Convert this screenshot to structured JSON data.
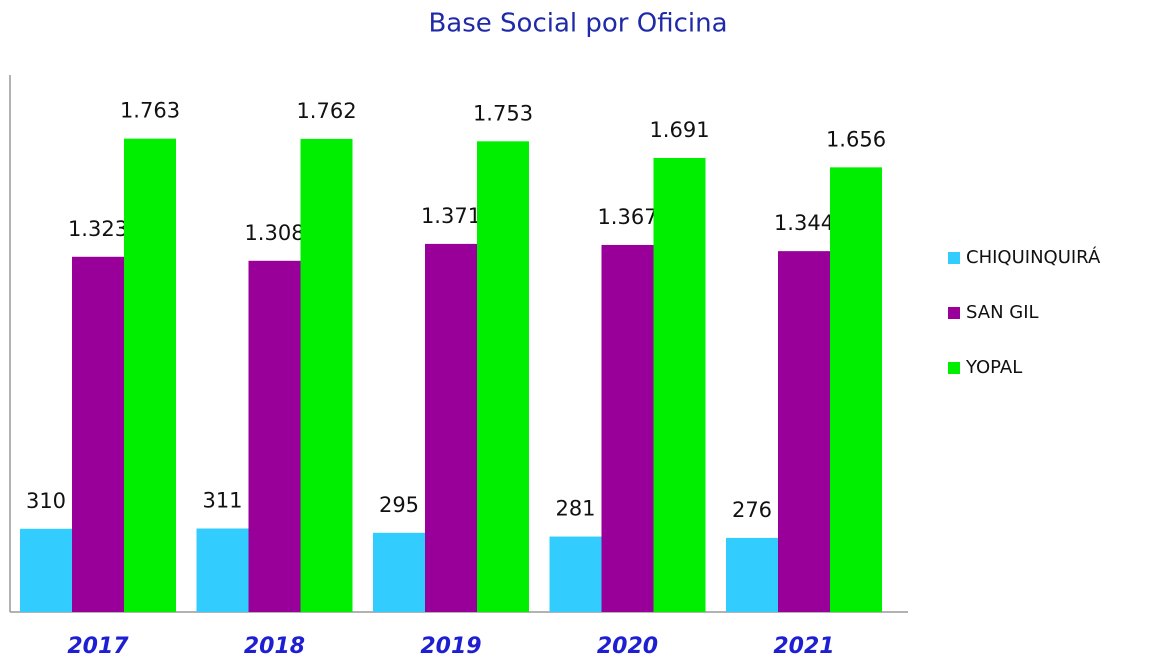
{
  "chart_data": {
    "type": "bar",
    "title": "Base Social por Oficina",
    "categories": [
      "2017",
      "2018",
      "2019",
      "2020",
      "2021"
    ],
    "ylim": [
      0,
      2000
    ],
    "series": [
      {
        "name": "CHIQUINQUIRÁ",
        "color": "#33ccff",
        "values": [
          310,
          311,
          295,
          281,
          276
        ],
        "value_labels": [
          "310",
          "311",
          "295",
          "281",
          "276"
        ]
      },
      {
        "name": "SAN GIL",
        "color": "#990099",
        "values": [
          1323,
          1308,
          1371,
          1367,
          1344
        ],
        "value_labels": [
          "1.323",
          "1.308",
          "1.371",
          "1.367",
          "1.344"
        ]
      },
      {
        "name": "YOPAL",
        "color": "#00ee00",
        "values": [
          1763,
          1762,
          1753,
          1691,
          1656
        ],
        "value_labels": [
          "1.763",
          "1.762",
          "1.753",
          "1.691",
          "1.656"
        ]
      }
    ]
  }
}
